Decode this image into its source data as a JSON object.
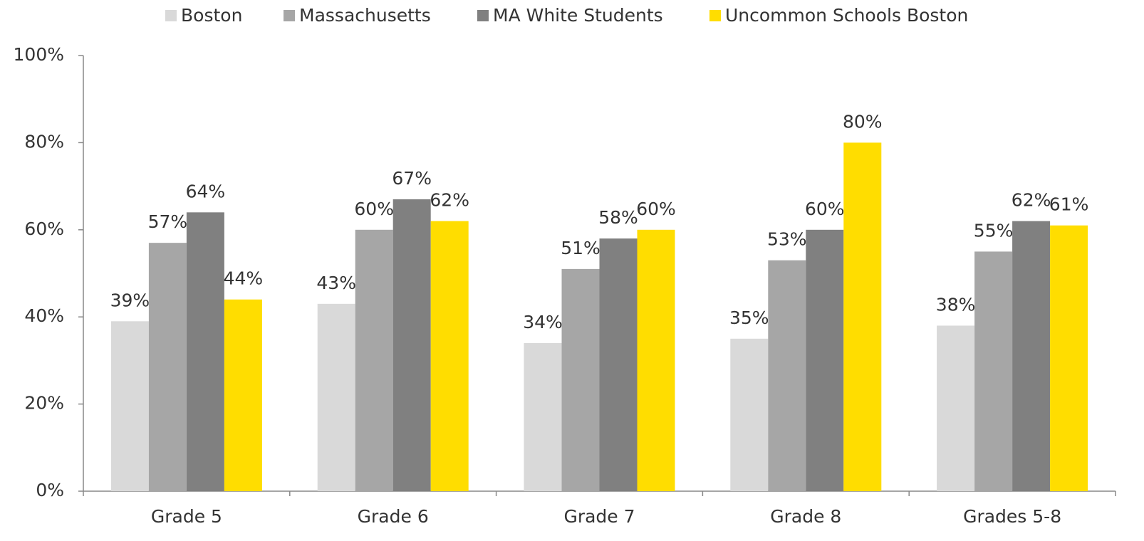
{
  "chart_data": {
    "type": "bar",
    "categories": [
      "Grade 5",
      "Grade 6",
      "Grade 7",
      "Grade 8",
      "Grades 5-8"
    ],
    "series": [
      {
        "name": "Boston",
        "color": "#d9d9d9",
        "values": [
          39,
          43,
          34,
          35,
          38
        ],
        "value_labels": [
          "39%",
          "43%",
          "34%",
          "35%",
          "38%"
        ]
      },
      {
        "name": "Massachusetts",
        "color": "#a6a6a6",
        "values": [
          57,
          60,
          51,
          53,
          55
        ],
        "value_labels": [
          "57%",
          "60%",
          "51%",
          "53%",
          "55%"
        ]
      },
      {
        "name": "MA White Students",
        "color": "#808080",
        "values": [
          64,
          67,
          58,
          60,
          62
        ],
        "value_labels": [
          "64%",
          "67%",
          "58%",
          "60%",
          "62%"
        ]
      },
      {
        "name": "Uncommon Schools Boston",
        "color": "#ffdd00",
        "values": [
          44,
          62,
          60,
          80,
          61
        ],
        "value_labels": [
          "44%",
          "62%",
          "60%",
          "80%",
          "61%"
        ]
      }
    ],
    "ylim": [
      0,
      100
    ],
    "yticks": [
      {
        "value": 0,
        "label": "0%"
      },
      {
        "value": 20,
        "label": "20%"
      },
      {
        "value": 40,
        "label": "40%"
      },
      {
        "value": 60,
        "label": "60%"
      },
      {
        "value": 80,
        "label": "80%"
      },
      {
        "value": 100,
        "label": "100%"
      }
    ],
    "grid": false,
    "legend": "top"
  }
}
